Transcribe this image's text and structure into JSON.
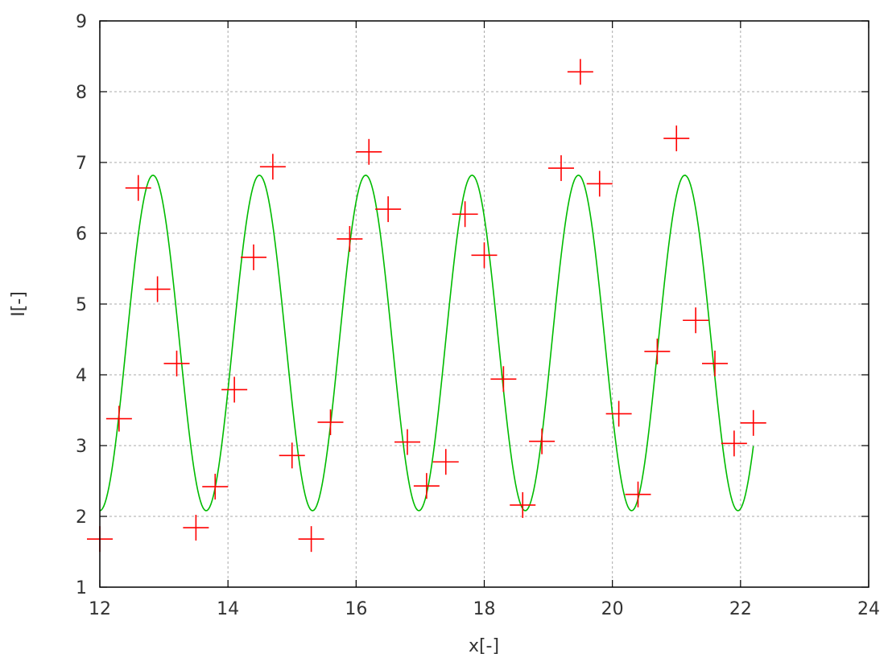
{
  "chart_data": {
    "type": "scatter",
    "title": "",
    "xlabel": "x[-]",
    "ylabel": "I[-]",
    "xlim": [
      12,
      24
    ],
    "ylim": [
      1,
      9
    ],
    "xticks": [
      12,
      14,
      16,
      18,
      20,
      22,
      24
    ],
    "yticks": [
      1,
      2,
      3,
      4,
      5,
      6,
      7,
      8,
      9
    ],
    "grid": true,
    "legend": "none",
    "series": [
      {
        "kind": "points",
        "marker": "plus",
        "color": "#ff0000",
        "x": [
          12.0,
          12.3,
          12.6,
          12.9,
          13.2,
          13.5,
          13.8,
          14.1,
          14.4,
          14.7,
          15.0,
          15.3,
          15.6,
          15.9,
          16.2,
          16.5,
          16.8,
          17.1,
          17.4,
          17.7,
          18.0,
          18.3,
          18.6,
          18.9,
          19.2,
          19.5,
          19.8,
          20.1,
          20.4,
          20.7,
          21.0,
          21.3,
          21.6,
          21.9,
          22.2
        ],
        "y": [
          1.68,
          3.38,
          6.64,
          5.21,
          4.16,
          1.84,
          2.42,
          3.79,
          5.66,
          6.94,
          2.86,
          1.68,
          3.33,
          5.92,
          7.15,
          6.34,
          3.05,
          2.43,
          2.77,
          6.27,
          5.69,
          3.94,
          2.16,
          3.06,
          6.92,
          8.28,
          6.7,
          3.45,
          2.31,
          4.33,
          7.34,
          4.77,
          4.16,
          3.03,
          3.32
        ]
      },
      {
        "kind": "curve",
        "color": "#00bb00",
        "x_range": [
          12.0,
          22.2
        ],
        "mean": 4.45,
        "amplitude": 2.37,
        "period": 1.66,
        "peak_x": 12.83
      }
    ]
  }
}
